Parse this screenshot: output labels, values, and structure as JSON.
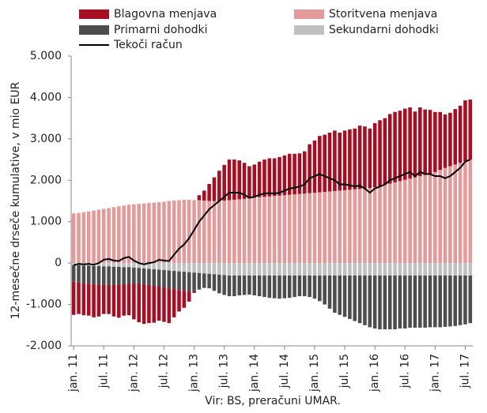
{
  "chart_data": {
    "type": "bar-line",
    "y_label": "12-mesečne drseče kumulative, v mio EUR",
    "source": "Vir: BS, preračuni UMAR.",
    "categories": [
      "jan. 11",
      null,
      null,
      null,
      null,
      null,
      "jul. 11",
      null,
      null,
      null,
      null,
      null,
      "jan. 12",
      null,
      null,
      null,
      null,
      null,
      "jul. 12",
      null,
      null,
      null,
      null,
      null,
      "jan. 13",
      null,
      null,
      null,
      null,
      null,
      "jul. 13",
      null,
      null,
      null,
      null,
      null,
      "jan. 14",
      null,
      null,
      null,
      null,
      null,
      "jul. 14",
      null,
      null,
      null,
      null,
      null,
      "jan. 15",
      null,
      null,
      null,
      null,
      null,
      "jul. 15",
      null,
      null,
      null,
      null,
      null,
      "jan. 16",
      null,
      null,
      null,
      null,
      null,
      "jul. 16",
      null,
      null,
      null,
      null,
      null,
      "jan. 17",
      null,
      null,
      null,
      null,
      null,
      "jul. 17",
      null
    ],
    "series": [
      {
        "name": "Blagovna menjava",
        "color": "#a50f23",
        "kind": "bar",
        "values": [
          -800,
          -760,
          -770,
          -770,
          -790,
          -770,
          -700,
          -700,
          -760,
          -800,
          -750,
          -760,
          -870,
          -940,
          -960,
          -920,
          -890,
          -830,
          -830,
          -840,
          -680,
          -520,
          -410,
          -240,
          -40,
          120,
          240,
          410,
          570,
          730,
          860,
          980,
          970,
          940,
          870,
          780,
          800,
          860,
          900,
          920,
          910,
          930,
          960,
          990,
          980,
          980,
          1020,
          1180,
          1260,
          1360,
          1380,
          1420,
          1460,
          1400,
          1440,
          1460,
          1470,
          1530,
          1500,
          1440,
          1550,
          1590,
          1610,
          1680,
          1700,
          1700,
          1720,
          1720,
          1590,
          1660,
          1580,
          1540,
          1450,
          1400,
          1290,
          1290,
          1340,
          1380,
          1470,
          1450
        ]
      },
      {
        "name": "Storitvena menjava",
        "color": "#e39a9a",
        "kind": "bar",
        "values": [
          1200,
          1210,
          1230,
          1250,
          1270,
          1290,
          1310,
          1330,
          1350,
          1370,
          1390,
          1410,
          1420,
          1430,
          1440,
          1450,
          1460,
          1470,
          1480,
          1500,
          1510,
          1520,
          1530,
          1530,
          1520,
          1520,
          1510,
          1500,
          1500,
          1500,
          1510,
          1520,
          1530,
          1540,
          1550,
          1560,
          1580,
          1590,
          1600,
          1610,
          1620,
          1630,
          1640,
          1650,
          1660,
          1670,
          1680,
          1690,
          1700,
          1710,
          1720,
          1730,
          1740,
          1750,
          1760,
          1770,
          1780,
          1790,
          1800,
          1810,
          1830,
          1860,
          1890,
          1920,
          1950,
          1980,
          2010,
          2040,
          2070,
          2100,
          2130,
          2160,
          2200,
          2250,
          2300,
          2340,
          2380,
          2420,
          2460,
          2500
        ]
      },
      {
        "name": "Primarni dohodki",
        "color": "#4d4d4d",
        "kind": "bar",
        "values": [
          -400,
          -420,
          -430,
          -440,
          -450,
          -450,
          -450,
          -450,
          -440,
          -430,
          -420,
          -400,
          -380,
          -370,
          -380,
          -390,
          -400,
          -400,
          -420,
          -430,
          -440,
          -450,
          -460,
          -470,
          -450,
          -400,
          -350,
          -350,
          -400,
          -450,
          -480,
          -500,
          -500,
          -480,
          -470,
          -460,
          -480,
          -500,
          -520,
          -540,
          -550,
          -560,
          -550,
          -540,
          -520,
          -500,
          -500,
          -520,
          -560,
          -620,
          -700,
          -800,
          -900,
          -950,
          -1000,
          -1050,
          -1100,
          -1150,
          -1200,
          -1250,
          -1280,
          -1300,
          -1300,
          -1300,
          -1300,
          -1280,
          -1280,
          -1260,
          -1260,
          -1260,
          -1260,
          -1250,
          -1250,
          -1250,
          -1240,
          -1230,
          -1220,
          -1200,
          -1180,
          -1150
        ]
      },
      {
        "name": "Sekundarni dohodki",
        "color": "#c0c0c0",
        "kind": "bar",
        "values": [
          -50,
          -50,
          -60,
          -60,
          -70,
          -70,
          -80,
          -80,
          -90,
          -90,
          -100,
          -100,
          -110,
          -120,
          -130,
          -140,
          -150,
          -160,
          -170,
          -180,
          -190,
          -200,
          -210,
          -220,
          -230,
          -240,
          -250,
          -260,
          -270,
          -280,
          -290,
          -300,
          -300,
          -300,
          -300,
          -300,
          -300,
          -300,
          -300,
          -300,
          -300,
          -300,
          -300,
          -300,
          -300,
          -300,
          -300,
          -300,
          -300,
          -300,
          -300,
          -300,
          -300,
          -300,
          -300,
          -300,
          -300,
          -300,
          -300,
          -300,
          -300,
          -300,
          -300,
          -300,
          -300,
          -300,
          -300,
          -300,
          -300,
          -300,
          -300,
          -300,
          -300,
          -300,
          -300,
          -300,
          -300,
          -300,
          -300,
          -300
        ]
      },
      {
        "name": "Tekoči račun",
        "color": "#000000",
        "kind": "line",
        "values": [
          -50,
          -20,
          -30,
          -20,
          -40,
          0,
          80,
          100,
          60,
          50,
          120,
          150,
          60,
          0,
          -30,
          0,
          20,
          80,
          60,
          50,
          200,
          350,
          450,
          600,
          800,
          1000,
          1150,
          1300,
          1400,
          1500,
          1600,
          1700,
          1700,
          1700,
          1650,
          1580,
          1600,
          1650,
          1680,
          1690,
          1680,
          1700,
          1750,
          1800,
          1820,
          1850,
          1900,
          2050,
          2100,
          2150,
          2100,
          2050,
          2000,
          1900,
          1900,
          1880,
          1850,
          1870,
          1800,
          1700,
          1800,
          1850,
          1900,
          2000,
          2050,
          2100,
          2150,
          2200,
          2100,
          2200,
          2150,
          2150,
          2100,
          2100,
          2050,
          2100,
          2200,
          2300,
          2450,
          2500
        ]
      }
    ],
    "ylim": [
      -2000,
      5000
    ],
    "yticks": [
      {
        "value": -2000,
        "label": "-2.000"
      },
      {
        "value": -1000,
        "label": "-1.000"
      },
      0,
      {
        "value": 1000,
        "label": "1.000"
      },
      {
        "value": 2000,
        "label": "2.000"
      },
      {
        "value": 3000,
        "label": "3.000"
      },
      {
        "value": 4000,
        "label": "4.000"
      },
      {
        "value": 5000,
        "label": "5.000"
      }
    ]
  }
}
